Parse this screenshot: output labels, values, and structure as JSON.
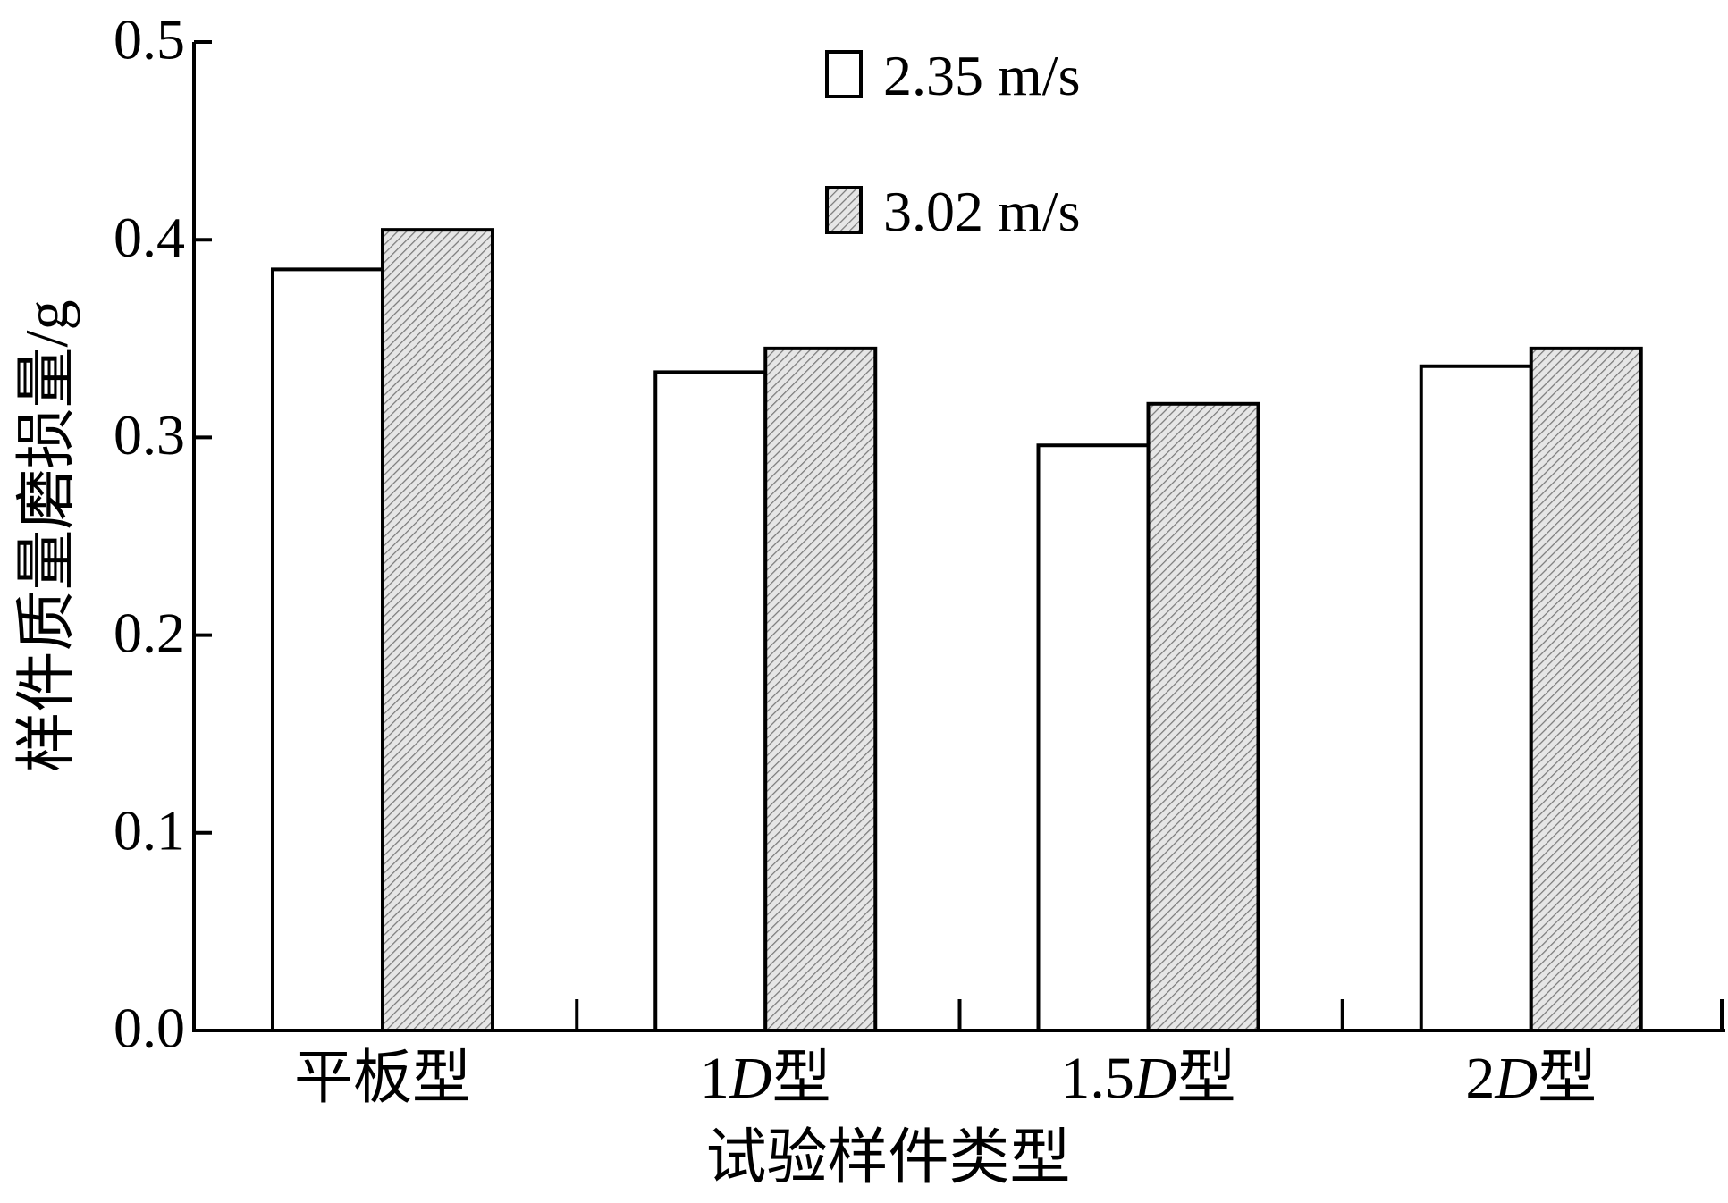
{
  "chart_data": {
    "type": "bar",
    "xlabel": "试验样件类型",
    "ylabel": "样件质量磨损量/g",
    "ylim": [
      0,
      0.5
    ],
    "yticks": [
      "0.0",
      "0.1",
      "0.2",
      "0.3",
      "0.4",
      "0.5"
    ],
    "categories": [
      {
        "main": "平板型",
        "italic": "",
        "suffix": ""
      },
      {
        "main": "1",
        "italic": "D",
        "suffix": "型"
      },
      {
        "main": "1.5",
        "italic": "D",
        "suffix": "型"
      },
      {
        "main": "2",
        "italic": "D",
        "suffix": "型"
      }
    ],
    "series": [
      {
        "name": "2.35 m/s",
        "values": [
          0.385,
          0.333,
          0.296,
          0.336
        ],
        "fill": "white"
      },
      {
        "name": "3.02 m/s",
        "values": [
          0.405,
          0.345,
          0.317,
          0.345
        ],
        "fill": "hatch"
      }
    ],
    "legend_position": "top-center",
    "grid": false
  }
}
